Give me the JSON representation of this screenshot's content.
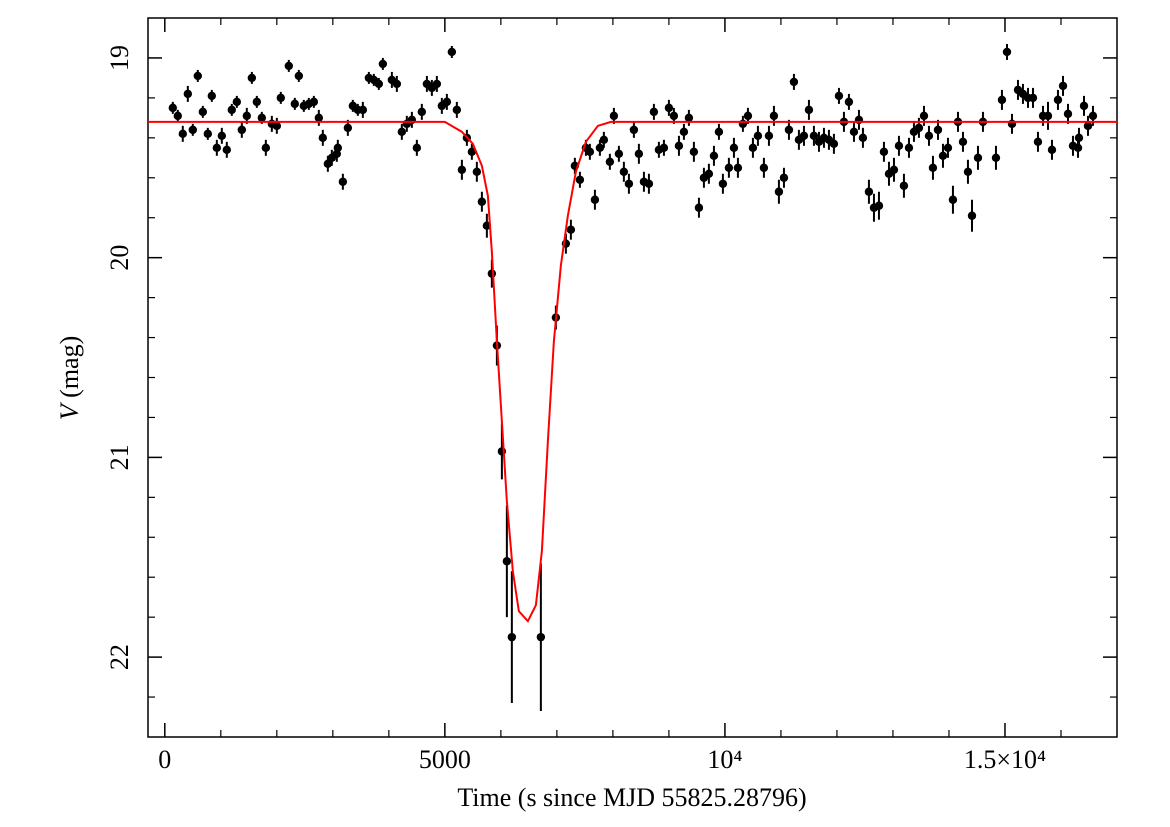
{
  "chart_data": {
    "type": "scatter",
    "xlabel": "Time (s since MJD 55825.28796)",
    "ylabel": {
      "symbol": "V",
      "unit": "(mag)"
    },
    "xlim": [
      -300,
      17000
    ],
    "ylim": [
      18.8,
      22.4
    ],
    "y_inverted": true,
    "xticks": [
      0,
      5000,
      {
        "value": 10000,
        "label": "10⁴"
      },
      {
        "value": 15000,
        "label": "1.5×10⁴"
      }
    ],
    "xminorticks": [
      1000,
      2000,
      3000,
      4000,
      6000,
      7000,
      8000,
      9000,
      11000,
      12000,
      13000,
      14000,
      16000
    ],
    "yticks": [
      19,
      20,
      21,
      22
    ],
    "yminorticks": [
      19.2,
      19.4,
      19.6,
      19.8,
      20.2,
      20.4,
      20.6,
      20.8,
      21.2,
      21.4,
      21.6,
      21.8,
      22.2
    ],
    "color": "#000000",
    "x": [
      143,
      232,
      321,
      411,
      500,
      589,
      679,
      768,
      839,
      929,
      1018,
      1107,
      1196,
      1286,
      1375,
      1464,
      1554,
      1643,
      1732,
      1804,
      1911,
      2000,
      2071,
      2214,
      2321,
      2393,
      2482,
      2571,
      2661,
      2750,
      2821,
      2911,
      2982,
      3071,
      3089,
      3179,
      3268,
      3357,
      3446,
      3536,
      3643,
      3732,
      3821,
      3893,
      4054,
      4143,
      4232,
      4321,
      4411,
      4500,
      4589,
      4679,
      4768,
      4857,
      4946,
      5036,
      5125,
      5214,
      5304,
      5393,
      5482,
      5571,
      5661,
      5750,
      5839,
      5929,
      6018,
      6107,
      6196,
      6714,
      6982,
      7161,
      7250,
      7321,
      7411,
      7518,
      7589,
      7679,
      7768,
      7839,
      7946,
      8018,
      8107,
      8196,
      8286,
      8375,
      8464,
      8554,
      8643,
      8732,
      8821,
      8911,
      9000,
      9089,
      9179,
      9268,
      9357,
      9446,
      9536,
      9625,
      9714,
      9804,
      9893,
      9964,
      10071,
      10161,
      10232,
      10321,
      10411,
      10500,
      10589,
      10696,
      10786,
      10875,
      10964,
      11054,
      11143,
      11232,
      11321,
      11411,
      11500,
      11589,
      11679,
      11768,
      11857,
      11946,
      12036,
      12125,
      12214,
      12304,
      12393,
      12464,
      12571,
      12661,
      12750,
      12839,
      12929,
      13018,
      13107,
      13196,
      13286,
      13375,
      13464,
      13554,
      13643,
      13714,
      13804,
      13893,
      13982,
      14071,
      14161,
      14250,
      14339,
      14411,
      14518,
      14607,
      14839,
      14946,
      15036,
      15125,
      15232,
      15321,
      15411,
      15500,
      15589,
      15679,
      15768,
      15839,
      15946,
      16036,
      16125,
      16214,
      16304,
      16321,
      16411,
      16482,
      16571
    ],
    "values": [
      19.25,
      19.29,
      19.38,
      19.18,
      19.36,
      19.09,
      19.27,
      19.38,
      19.19,
      19.45,
      19.39,
      19.46,
      19.26,
      19.22,
      19.36,
      19.29,
      19.1,
      19.22,
      19.3,
      19.45,
      19.33,
      19.34,
      19.2,
      19.04,
      19.23,
      19.09,
      19.24,
      19.23,
      19.22,
      19.3,
      19.4,
      19.53,
      19.5,
      19.48,
      19.45,
      19.62,
      19.35,
      19.24,
      19.26,
      19.26,
      19.1,
      19.11,
      19.13,
      19.03,
      19.11,
      19.13,
      19.37,
      19.33,
      19.31,
      19.45,
      19.27,
      19.13,
      19.15,
      19.13,
      19.24,
      19.22,
      18.97,
      19.26,
      19.56,
      19.4,
      19.47,
      19.57,
      19.72,
      19.84,
      20.08,
      20.44,
      20.97,
      21.52,
      21.9,
      21.9,
      20.3,
      19.93,
      19.86,
      19.54,
      19.61,
      19.45,
      19.47,
      19.71,
      19.45,
      19.41,
      19.52,
      19.29,
      19.48,
      19.57,
      19.63,
      19.36,
      19.48,
      19.62,
      19.63,
      19.27,
      19.46,
      19.45,
      19.25,
      19.29,
      19.44,
      19.37,
      19.3,
      19.47,
      19.75,
      19.6,
      19.58,
      19.49,
      19.37,
      19.63,
      19.55,
      19.45,
      19.55,
      19.33,
      19.29,
      19.45,
      19.39,
      19.55,
      19.39,
      19.29,
      19.67,
      19.6,
      19.36,
      19.12,
      19.41,
      19.39,
      19.26,
      19.39,
      19.42,
      19.4,
      19.41,
      19.43,
      19.19,
      19.32,
      19.22,
      19.37,
      19.31,
      19.4,
      19.67,
      19.75,
      19.74,
      19.47,
      19.58,
      19.56,
      19.44,
      19.64,
      19.45,
      19.37,
      19.35,
      19.29,
      19.39,
      19.55,
      19.36,
      19.49,
      19.45,
      19.71,
      19.32,
      19.42,
      19.57,
      19.79,
      19.5,
      19.32,
      19.5,
      19.21,
      18.97,
      19.33,
      19.16,
      19.18,
      19.2,
      19.2,
      19.42,
      19.29,
      19.29,
      19.46,
      19.21,
      19.14,
      19.28,
      19.44,
      19.45,
      19.4,
      19.24,
      19.34,
      19.29
    ],
    "errors": [
      0.03,
      0.03,
      0.04,
      0.04,
      0.03,
      0.03,
      0.03,
      0.03,
      0.03,
      0.04,
      0.04,
      0.04,
      0.03,
      0.03,
      0.04,
      0.04,
      0.03,
      0.03,
      0.03,
      0.04,
      0.04,
      0.04,
      0.03,
      0.03,
      0.03,
      0.03,
      0.03,
      0.03,
      0.03,
      0.04,
      0.04,
      0.04,
      0.04,
      0.04,
      0.04,
      0.04,
      0.04,
      0.03,
      0.03,
      0.04,
      0.03,
      0.03,
      0.03,
      0.03,
      0.04,
      0.04,
      0.04,
      0.04,
      0.04,
      0.04,
      0.04,
      0.04,
      0.04,
      0.04,
      0.04,
      0.04,
      0.03,
      0.04,
      0.05,
      0.04,
      0.04,
      0.05,
      0.05,
      0.06,
      0.07,
      0.1,
      0.14,
      0.28,
      0.33,
      0.37,
      0.06,
      0.05,
      0.05,
      0.04,
      0.04,
      0.04,
      0.04,
      0.05,
      0.04,
      0.04,
      0.04,
      0.04,
      0.04,
      0.05,
      0.05,
      0.04,
      0.05,
      0.05,
      0.05,
      0.04,
      0.04,
      0.04,
      0.04,
      0.04,
      0.05,
      0.04,
      0.04,
      0.05,
      0.05,
      0.05,
      0.05,
      0.05,
      0.04,
      0.05,
      0.05,
      0.05,
      0.05,
      0.04,
      0.04,
      0.05,
      0.05,
      0.05,
      0.05,
      0.05,
      0.06,
      0.05,
      0.05,
      0.04,
      0.05,
      0.05,
      0.05,
      0.05,
      0.05,
      0.05,
      0.05,
      0.05,
      0.04,
      0.05,
      0.04,
      0.05,
      0.05,
      0.05,
      0.06,
      0.07,
      0.07,
      0.05,
      0.06,
      0.06,
      0.05,
      0.06,
      0.05,
      0.05,
      0.05,
      0.05,
      0.05,
      0.06,
      0.05,
      0.06,
      0.05,
      0.07,
      0.05,
      0.05,
      0.06,
      0.08,
      0.06,
      0.05,
      0.06,
      0.05,
      0.04,
      0.05,
      0.05,
      0.05,
      0.05,
      0.05,
      0.05,
      0.05,
      0.07,
      0.05,
      0.05,
      0.05,
      0.05,
      0.05,
      0.05,
      0.05,
      0.05,
      0.05,
      0.05
    ],
    "model": {
      "color": "#ff0000",
      "x": [
        -300,
        4750,
        5000,
        5304,
        5500,
        5661,
        5768,
        5839,
        5929,
        6018,
        6107,
        6214,
        6321,
        6482,
        6625,
        6732,
        6839,
        6946,
        7071,
        7196,
        7339,
        7518,
        7732,
        7964,
        17000
      ],
      "values": [
        19.32,
        19.32,
        19.32,
        19.37,
        19.43,
        19.54,
        19.69,
        19.97,
        20.42,
        20.82,
        21.22,
        21.57,
        21.77,
        21.82,
        21.74,
        21.47,
        20.92,
        20.42,
        20.04,
        19.79,
        19.57,
        19.42,
        19.34,
        19.32,
        19.32
      ]
    }
  }
}
